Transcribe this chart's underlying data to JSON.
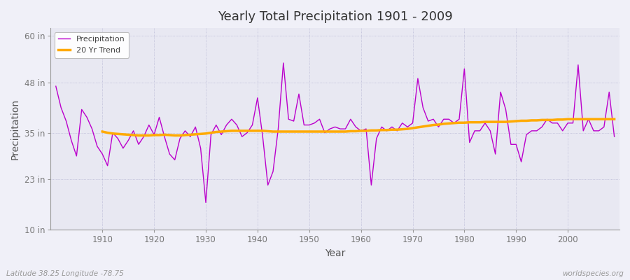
{
  "title": "Yearly Total Precipitation 1901 - 2009",
  "xlabel": "Year",
  "ylabel": "Precipitation",
  "footnote_left": "Latitude 38.25 Longitude -78.75",
  "footnote_right": "worldspecies.org",
  "yticks": [
    10,
    23,
    35,
    48,
    60
  ],
  "ytick_labels": [
    "10 in",
    "23 in",
    "35 in",
    "48 in",
    "60 in"
  ],
  "xlim": [
    1900,
    2010
  ],
  "ylim": [
    10,
    62
  ],
  "background_color": "#f0f0f8",
  "plot_bg_color": "#e8e8f2",
  "precip_color": "#bb00cc",
  "trend_color": "#ffaa00",
  "legend_precip": "Precipitation",
  "legend_trend": "20 Yr Trend",
  "years": [
    1901,
    1902,
    1903,
    1904,
    1905,
    1906,
    1907,
    1908,
    1909,
    1910,
    1911,
    1912,
    1913,
    1914,
    1915,
    1916,
    1917,
    1918,
    1919,
    1920,
    1921,
    1922,
    1923,
    1924,
    1925,
    1926,
    1927,
    1928,
    1929,
    1930,
    1931,
    1932,
    1933,
    1934,
    1935,
    1936,
    1937,
    1938,
    1939,
    1940,
    1941,
    1942,
    1943,
    1944,
    1945,
    1946,
    1947,
    1948,
    1949,
    1950,
    1951,
    1952,
    1953,
    1954,
    1955,
    1956,
    1957,
    1958,
    1959,
    1960,
    1961,
    1962,
    1963,
    1964,
    1965,
    1966,
    1967,
    1968,
    1969,
    1970,
    1971,
    1972,
    1973,
    1974,
    1975,
    1976,
    1977,
    1978,
    1979,
    1980,
    1981,
    1982,
    1983,
    1984,
    1985,
    1986,
    1987,
    1988,
    1989,
    1990,
    1991,
    1992,
    1993,
    1994,
    1995,
    1996,
    1997,
    1998,
    1999,
    2000,
    2001,
    2002,
    2003,
    2004,
    2005,
    2006,
    2007,
    2008,
    2009
  ],
  "precip": [
    47.0,
    41.5,
    38.0,
    33.0,
    29.0,
    41.0,
    39.0,
    36.0,
    31.5,
    29.5,
    26.5,
    35.0,
    33.5,
    31.0,
    33.0,
    35.5,
    32.0,
    34.0,
    37.0,
    34.5,
    39.0,
    34.0,
    29.5,
    28.0,
    33.5,
    35.5,
    34.0,
    36.5,
    31.0,
    17.0,
    34.5,
    37.0,
    34.5,
    37.0,
    38.5,
    37.0,
    34.0,
    35.0,
    37.0,
    44.0,
    34.0,
    21.5,
    25.0,
    36.0,
    53.0,
    38.5,
    38.0,
    45.0,
    37.0,
    37.0,
    37.5,
    38.5,
    35.0,
    36.0,
    36.5,
    36.0,
    36.0,
    38.5,
    36.5,
    35.5,
    36.0,
    21.5,
    33.5,
    36.5,
    35.5,
    36.5,
    35.5,
    37.5,
    36.5,
    37.5,
    49.0,
    41.5,
    38.0,
    38.5,
    36.5,
    38.5,
    38.5,
    37.5,
    38.5,
    51.5,
    32.5,
    35.5,
    35.5,
    37.5,
    35.5,
    29.5,
    45.5,
    41.0,
    32.0,
    32.0,
    27.5,
    34.5,
    35.5,
    35.5,
    36.5,
    38.5,
    37.5,
    37.5,
    35.5,
    37.5,
    37.5,
    52.5,
    35.5,
    38.5,
    35.5,
    35.5,
    36.5,
    45.5,
    34.0
  ],
  "trend": [
    null,
    null,
    null,
    null,
    null,
    null,
    null,
    null,
    null,
    35.3,
    35.0,
    34.8,
    34.7,
    34.6,
    34.5,
    34.4,
    34.3,
    34.3,
    34.3,
    34.4,
    34.4,
    34.5,
    34.4,
    34.3,
    34.3,
    34.4,
    34.5,
    34.6,
    34.7,
    34.8,
    35.0,
    35.2,
    35.3,
    35.4,
    35.5,
    35.5,
    35.5,
    35.5,
    35.5,
    35.5,
    35.5,
    35.4,
    35.3,
    35.3,
    35.3,
    35.3,
    35.3,
    35.3,
    35.3,
    35.3,
    35.3,
    35.3,
    35.3,
    35.3,
    35.3,
    35.3,
    35.3,
    35.4,
    35.4,
    35.5,
    35.5,
    35.6,
    35.6,
    35.7,
    35.7,
    35.8,
    35.8,
    35.9,
    36.0,
    36.2,
    36.4,
    36.6,
    36.8,
    37.0,
    37.1,
    37.3,
    37.4,
    37.5,
    37.6,
    37.6,
    37.7,
    37.7,
    37.7,
    37.8,
    37.8,
    37.8,
    37.8,
    37.8,
    37.9,
    38.0,
    38.1,
    38.1,
    38.2,
    38.2,
    38.3,
    38.3,
    38.3,
    38.4,
    38.4,
    38.5,
    38.5,
    38.5,
    38.5,
    38.5,
    38.5,
    38.5,
    38.5,
    38.5,
    38.5
  ]
}
